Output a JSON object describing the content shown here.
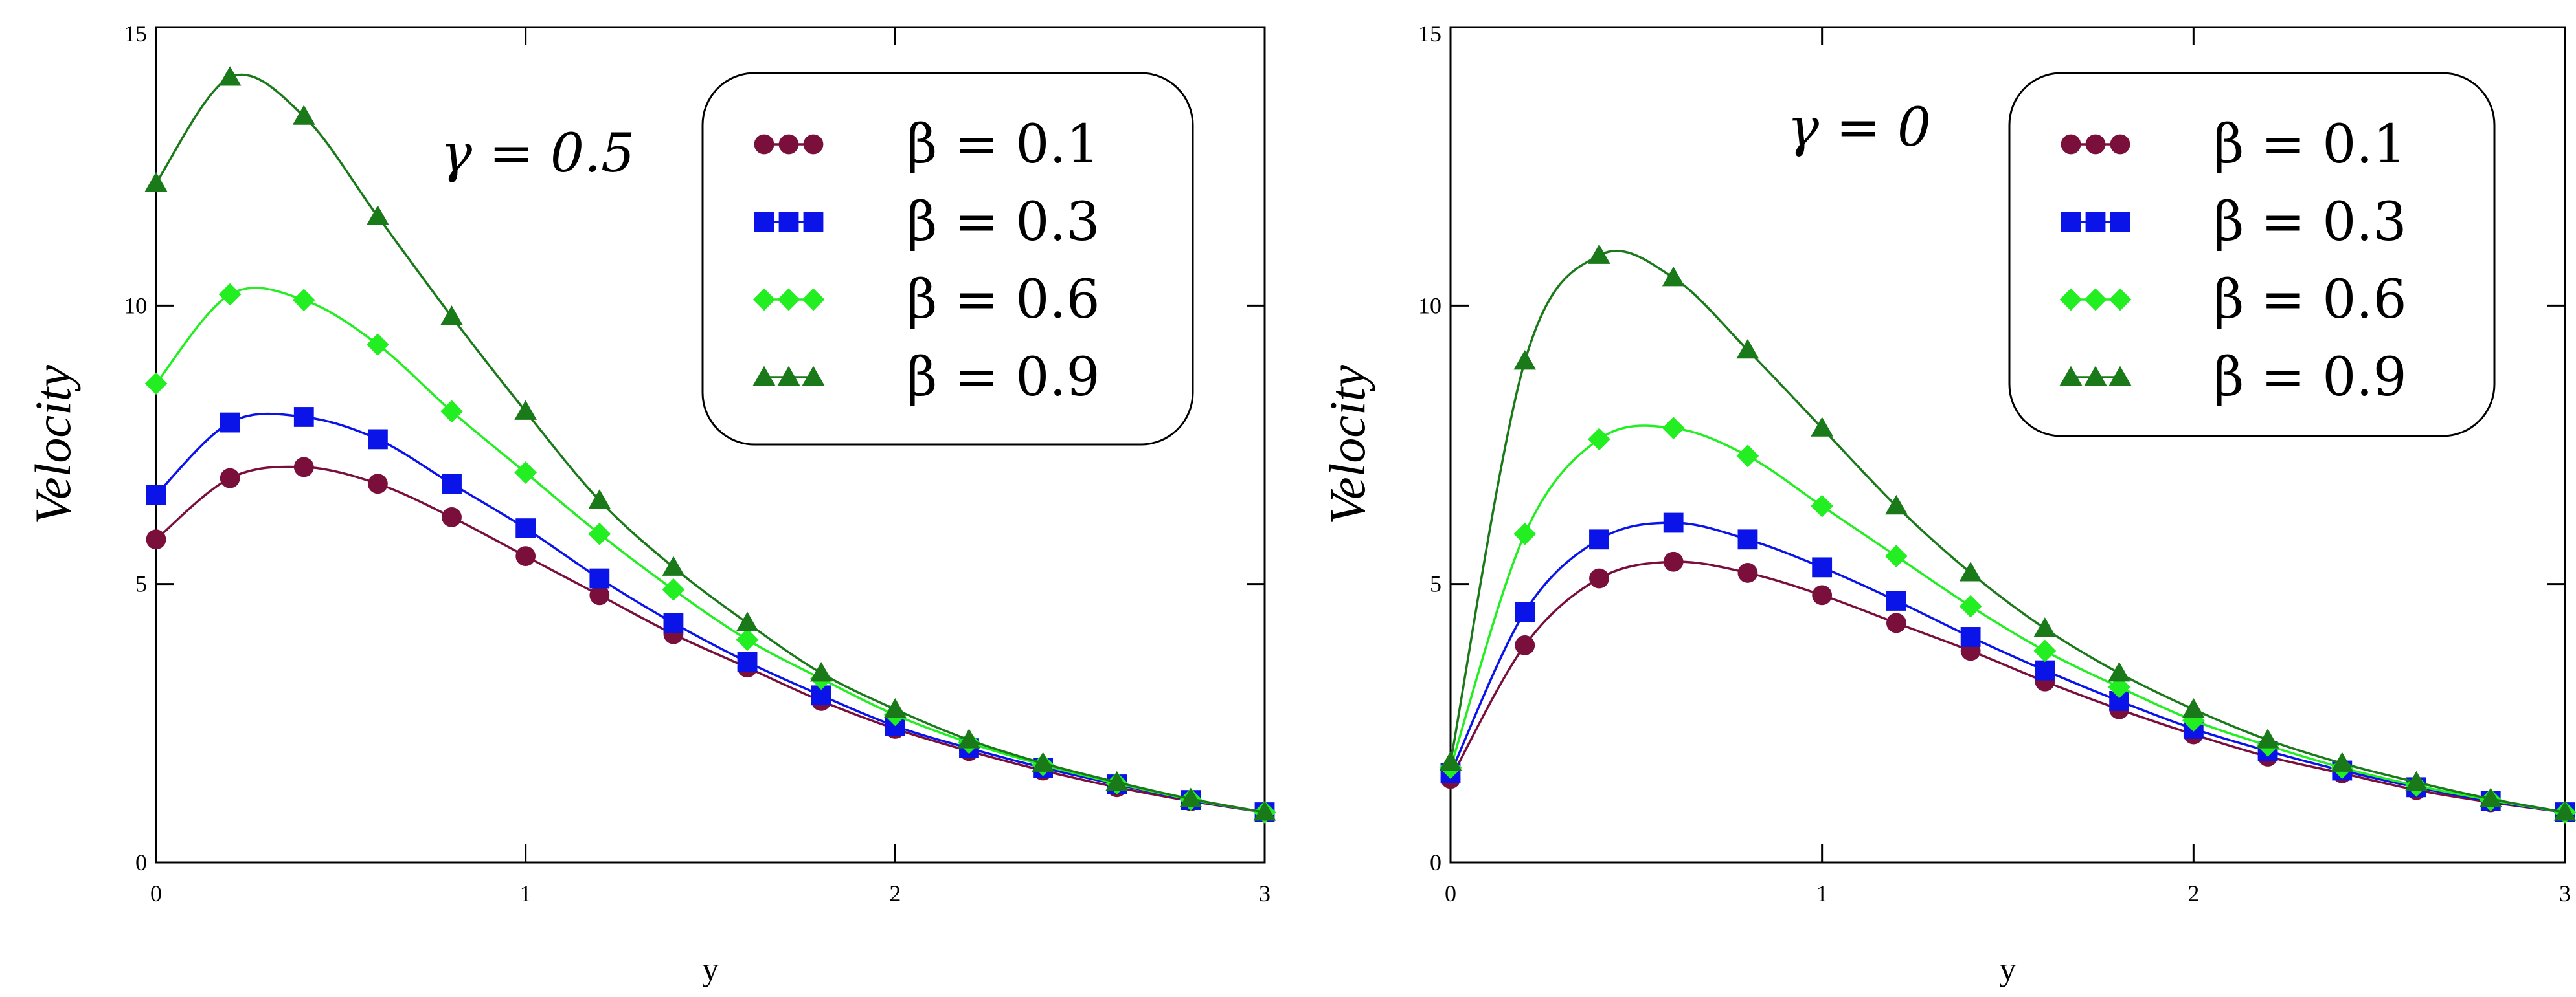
{
  "chart_data": [
    {
      "type": "line",
      "title": "",
      "annotation": "γ = 0.5",
      "xlabel": "y",
      "ylabel": "Velocity",
      "xlim": [
        0,
        3
      ],
      "ylim": [
        0,
        15
      ],
      "xticks": [
        0,
        1,
        2,
        3
      ],
      "yticks": [
        0,
        5,
        10,
        15
      ],
      "legend_position": "top-right",
      "x": [
        0,
        0.2,
        0.4,
        0.6,
        0.8,
        1.0,
        1.2,
        1.4,
        1.6,
        1.8,
        2.0,
        2.2,
        2.4,
        2.6,
        2.8,
        3.0
      ],
      "series": [
        {
          "name": "β = 0.1",
          "color": "#7a0f3c",
          "marker": "circle",
          "values": [
            5.8,
            6.9,
            7.1,
            6.8,
            6.2,
            5.5,
            4.8,
            4.1,
            3.5,
            2.9,
            2.4,
            2.0,
            1.65,
            1.35,
            1.1,
            0.9
          ]
        },
        {
          "name": "β = 0.3",
          "color": "#0a14e8",
          "marker": "square",
          "values": [
            6.6,
            7.9,
            8.0,
            7.6,
            6.8,
            6.0,
            5.1,
            4.3,
            3.6,
            3.0,
            2.45,
            2.05,
            1.7,
            1.4,
            1.12,
            0.9
          ]
        },
        {
          "name": "β = 0.6",
          "color": "#22ee22",
          "marker": "diamond",
          "values": [
            8.6,
            10.2,
            10.1,
            9.3,
            8.1,
            7.0,
            5.9,
            4.9,
            4.0,
            3.3,
            2.65,
            2.15,
            1.75,
            1.42,
            1.13,
            0.9
          ]
        },
        {
          "name": "β = 0.9",
          "color": "#1a7a1a",
          "marker": "triangle",
          "values": [
            12.2,
            14.1,
            13.4,
            11.6,
            9.8,
            8.1,
            6.5,
            5.3,
            4.3,
            3.4,
            2.75,
            2.2,
            1.78,
            1.44,
            1.14,
            0.9
          ]
        }
      ]
    },
    {
      "type": "line",
      "title": "",
      "annotation": "γ = 0",
      "xlabel": "y",
      "ylabel": "Velocity",
      "xlim": [
        0,
        3
      ],
      "ylim": [
        0,
        15
      ],
      "xticks": [
        0,
        1,
        2,
        3
      ],
      "yticks": [
        0,
        5,
        10,
        15
      ],
      "legend_position": "top-right",
      "x": [
        0,
        0.2,
        0.4,
        0.6,
        0.8,
        1.0,
        1.2,
        1.4,
        1.6,
        1.8,
        2.0,
        2.2,
        2.4,
        2.6,
        2.8,
        3.0
      ],
      "series": [
        {
          "name": "β = 0.1",
          "color": "#7a0f3c",
          "marker": "circle",
          "values": [
            1.5,
            3.9,
            5.1,
            5.4,
            5.2,
            4.8,
            4.3,
            3.8,
            3.25,
            2.75,
            2.3,
            1.9,
            1.6,
            1.3,
            1.08,
            0.9
          ]
        },
        {
          "name": "β = 0.3",
          "color": "#0a14e8",
          "marker": "square",
          "values": [
            1.6,
            4.5,
            5.8,
            6.1,
            5.8,
            5.3,
            4.7,
            4.05,
            3.45,
            2.9,
            2.4,
            2.0,
            1.65,
            1.35,
            1.1,
            0.9
          ]
        },
        {
          "name": "β = 0.6",
          "color": "#22ee22",
          "marker": "diamond",
          "values": [
            1.7,
            5.9,
            7.6,
            7.8,
            7.3,
            6.4,
            5.5,
            4.6,
            3.8,
            3.15,
            2.55,
            2.1,
            1.7,
            1.38,
            1.12,
            0.9
          ]
        },
        {
          "name": "β = 0.9",
          "color": "#1a7a1a",
          "marker": "triangle",
          "values": [
            1.8,
            9.0,
            10.9,
            10.5,
            9.2,
            7.8,
            6.4,
            5.2,
            4.2,
            3.4,
            2.75,
            2.2,
            1.78,
            1.44,
            1.14,
            0.9
          ]
        }
      ]
    }
  ]
}
